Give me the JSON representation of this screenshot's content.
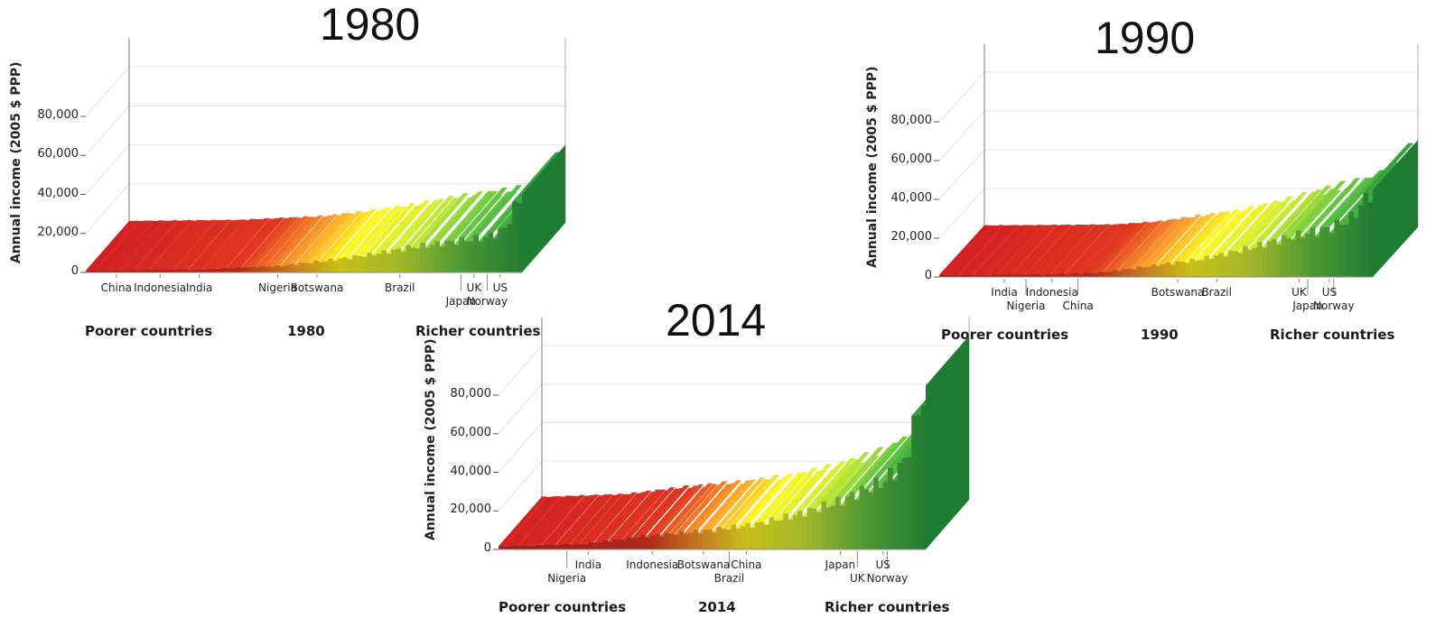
{
  "chart_data": [
    {
      "type": "bar",
      "title": "1980",
      "ylabel": "Annual income (2005 $ PPP)",
      "ylim": [
        0,
        90000
      ],
      "yticks": [
        "0",
        "20,000",
        "40,000",
        "60,000",
        "80,000"
      ],
      "ytick_values": [
        0,
        20000,
        40000,
        60000,
        80000
      ],
      "grid": true,
      "footer": {
        "left": "Poorer countries",
        "center": "1980",
        "right": "Richer countries"
      },
      "countries": [
        {
          "name": "China",
          "pos": 0.07,
          "row": 0
        },
        {
          "name": "Indonesia",
          "pos": 0.17,
          "row": 0
        },
        {
          "name": "India",
          "pos": 0.26,
          "row": 0
        },
        {
          "name": "Nigeria",
          "pos": 0.44,
          "row": 0
        },
        {
          "name": "Botswana",
          "pos": 0.53,
          "row": 0
        },
        {
          "name": "Brazil",
          "pos": 0.72,
          "row": 0
        },
        {
          "name": "Japan",
          "pos": 0.86,
          "row": 1
        },
        {
          "name": "UK",
          "pos": 0.89,
          "row": 0
        },
        {
          "name": "Norway",
          "pos": 0.92,
          "row": 1
        },
        {
          "name": "US",
          "pos": 0.95,
          "row": 0
        }
      ],
      "profile": [
        [
          0,
          1000
        ],
        [
          0.25,
          1500
        ],
        [
          0.35,
          2500
        ],
        [
          0.45,
          3500
        ],
        [
          0.55,
          6000
        ],
        [
          0.65,
          9000
        ],
        [
          0.75,
          13000
        ],
        [
          0.85,
          16000
        ],
        [
          0.92,
          18000
        ],
        [
          0.96,
          22000
        ],
        [
          1,
          40000
        ]
      ]
    },
    {
      "type": "bar",
      "title": "1990",
      "ylabel": "Annual income (2005 $ PPP)",
      "ylim": [
        0,
        90000
      ],
      "yticks": [
        "0",
        "20,000",
        "40,000",
        "60,000",
        "80,000"
      ],
      "ytick_values": [
        0,
        20000,
        40000,
        60000,
        80000
      ],
      "grid": true,
      "footer": {
        "left": "Poorer countries",
        "center": "1990",
        "right": "Richer countries"
      },
      "countries": [
        {
          "name": "India",
          "pos": 0.15,
          "row": 0
        },
        {
          "name": "Nigeria",
          "pos": 0.2,
          "row": 1
        },
        {
          "name": "Indonesia",
          "pos": 0.26,
          "row": 0
        },
        {
          "name": "China",
          "pos": 0.32,
          "row": 1
        },
        {
          "name": "Botswana",
          "pos": 0.55,
          "row": 0
        },
        {
          "name": "Brazil",
          "pos": 0.64,
          "row": 0
        },
        {
          "name": "UK",
          "pos": 0.83,
          "row": 0
        },
        {
          "name": "Japan",
          "pos": 0.85,
          "row": 1
        },
        {
          "name": "Norway",
          "pos": 0.91,
          "row": 1
        },
        {
          "name": "US",
          "pos": 0.9,
          "row": 0
        }
      ],
      "profile": [
        [
          0,
          1000
        ],
        [
          0.3,
          1500
        ],
        [
          0.4,
          3000
        ],
        [
          0.5,
          6000
        ],
        [
          0.6,
          9000
        ],
        [
          0.7,
          14000
        ],
        [
          0.8,
          20000
        ],
        [
          0.9,
          25000
        ],
        [
          0.95,
          30000
        ],
        [
          1,
          45000
        ]
      ]
    },
    {
      "type": "bar",
      "title": "2014",
      "ylabel": "Annual income (2005 $ PPP)",
      "ylim": [
        0,
        90000
      ],
      "yticks": [
        "0",
        "20,000",
        "40,000",
        "60,000",
        "80,000"
      ],
      "ytick_values": [
        0,
        20000,
        40000,
        60000,
        80000
      ],
      "grid": true,
      "footer": {
        "left": "Poorer countries",
        "center": "2014",
        "right": "Richer countries"
      },
      "countries": [
        {
          "name": "Nigeria",
          "pos": 0.16,
          "row": 1
        },
        {
          "name": "India",
          "pos": 0.21,
          "row": 0
        },
        {
          "name": "Indonesia",
          "pos": 0.36,
          "row": 0
        },
        {
          "name": "Botswana",
          "pos": 0.48,
          "row": 0
        },
        {
          "name": "Brazil",
          "pos": 0.54,
          "row": 1
        },
        {
          "name": "China",
          "pos": 0.58,
          "row": 0
        },
        {
          "name": "Japan",
          "pos": 0.8,
          "row": 0
        },
        {
          "name": "UK",
          "pos": 0.84,
          "row": 1
        },
        {
          "name": "US",
          "pos": 0.9,
          "row": 0
        },
        {
          "name": "Norway",
          "pos": 0.91,
          "row": 1
        }
      ],
      "profile": [
        [
          0,
          1500
        ],
        [
          0.2,
          3000
        ],
        [
          0.35,
          7000
        ],
        [
          0.5,
          10000
        ],
        [
          0.6,
          13000
        ],
        [
          0.7,
          18000
        ],
        [
          0.8,
          25000
        ],
        [
          0.9,
          35000
        ],
        [
          0.95,
          45000
        ],
        [
          1,
          85000
        ]
      ]
    }
  ]
}
